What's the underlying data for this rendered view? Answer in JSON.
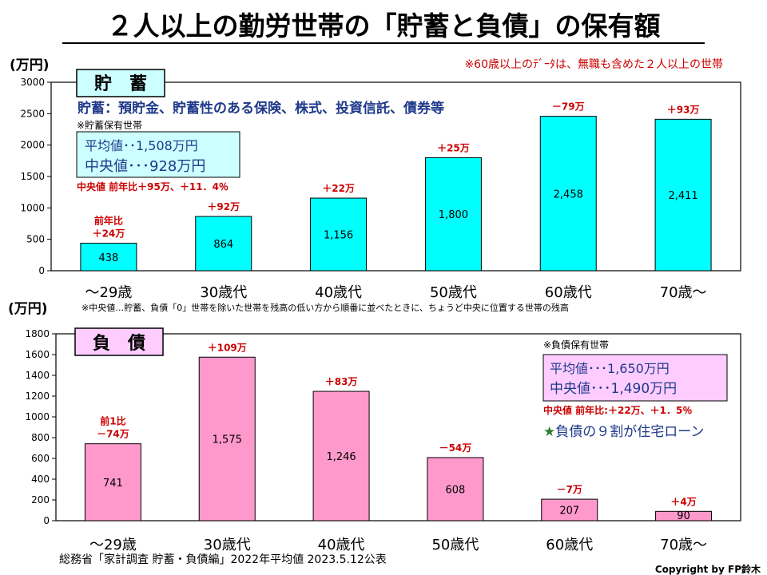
{
  "page": {
    "title": "２人以上の勤労世帯の「貯蓄と負債」の保有額",
    "note_top": "※60歳以上のﾃﾞｰﾀは、無職も含めた２人以上の世帯",
    "note_middle": "※中央値…貯蓄、負債「0」世帯を除いた世帯を残高の低い方から順番に並べたときに、ちょうど中央に位置する世帯の残高",
    "source": "総務省「家計調査 貯蓄・負債編」2022年平均値 2023.5.12公表",
    "copyright": "Copyright by FP鈴木",
    "colors": {
      "savings": "#00ffff",
      "debt": "#ff99cc",
      "change_text": "#cc0000",
      "title_text": "#000000"
    }
  },
  "chart_data": [
    {
      "type": "bar",
      "label": "貯　蓄",
      "ylabel": "(万円)",
      "ylim": [
        0,
        3000
      ],
      "yticks": [
        0,
        500,
        1000,
        1500,
        2000,
        2500,
        3000
      ],
      "categories": [
        "～29歳",
        "30歳代",
        "40歳代",
        "50歳代",
        "60歳代",
        "70歳～"
      ],
      "values": [
        438,
        864,
        1156,
        1800,
        2458,
        2411
      ],
      "value_labels": [
        "438",
        "864",
        "1,156",
        "1,800",
        "2,458",
        "2,411"
      ],
      "changes": [
        "前年比\n＋24万",
        "＋92万",
        "＋22万",
        "＋25万",
        "－79万",
        "＋93万"
      ],
      "definition": "貯蓄：預貯金、貯蓄性のある保険、株式、投資信託、債券等",
      "holder_note": "※貯蓄保有世帯",
      "stats": {
        "mean": "平均値･･1,508万円",
        "median": "中央値･･･928万円"
      },
      "median_change": "中央値 前年比＋95万、＋11．4％",
      "grid": false
    },
    {
      "type": "bar",
      "label": "負　債",
      "ylabel": "(万円)",
      "ylim": [
        0,
        1800
      ],
      "yticks": [
        0,
        200,
        400,
        600,
        800,
        1000,
        1200,
        1400,
        1600,
        1800
      ],
      "categories": [
        "～29歳",
        "30歳代",
        "40歳代",
        "50歳代",
        "60歳代",
        "70歳～"
      ],
      "values": [
        741,
        1575,
        1246,
        608,
        207,
        90
      ],
      "value_labels": [
        "741",
        "1,575",
        "1,246",
        "608",
        "207",
        "90"
      ],
      "changes": [
        "前1比\n－74万",
        "＋109万",
        "＋83万",
        "－54万",
        "－7万",
        "＋4万"
      ],
      "holder_note": "※負債保有世帯",
      "stats": {
        "mean": "平均値･･･1,650万円",
        "median": "中央値･･･1,490万円"
      },
      "median_change": "中央値 前年比:＋22万、＋1．5％",
      "highlight": "負債の９割が住宅ローン",
      "highlight_icon": "star-icon",
      "grid": false
    }
  ]
}
